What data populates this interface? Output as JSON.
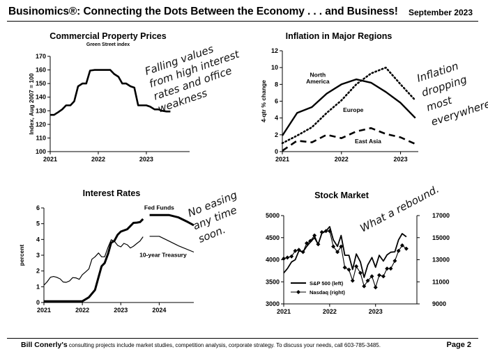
{
  "header": {
    "title": "Businomics®: Connecting the Dots Between the Economy . . . and Business!",
    "date": "September 2023"
  },
  "footer": {
    "author": "Bill Conerly's",
    "text": " consulting projects include market studies, competition analysis, corporate strategy.  To discuss your needs, call 603-785-3485.",
    "page": "Page 2"
  },
  "chart_data": [
    {
      "id": "commercial",
      "type": "line",
      "title": "Commercial Property Prices",
      "subtitle": "Green Street index",
      "ylabel": "Index, Aug 2007 = 100",
      "ylim": [
        100,
        170
      ],
      "yticks": [
        "100",
        "110",
        "120",
        "130",
        "140",
        "150",
        "160",
        "170"
      ],
      "xlim": [
        2021,
        2023.9
      ],
      "xticks": [
        {
          "v": 2021,
          "label": "2021"
        },
        {
          "v": 2022,
          "label": "2022"
        },
        {
          "v": 2023,
          "label": "2023"
        }
      ],
      "series": [
        {
          "values": [
            [
              2021.0,
              127
            ],
            [
              2021.08,
              127
            ],
            [
              2021.17,
              129
            ],
            [
              2021.25,
              131
            ],
            [
              2021.33,
              134
            ],
            [
              2021.42,
              134
            ],
            [
              2021.5,
              137
            ],
            [
              2021.58,
              148
            ],
            [
              2021.67,
              150
            ],
            [
              2021.75,
              150
            ],
            [
              2021.83,
              159.5
            ],
            [
              2021.92,
              160
            ],
            [
              2022.0,
              160
            ],
            [
              2022.08,
              160
            ],
            [
              2022.17,
              160
            ],
            [
              2022.25,
              160
            ],
            [
              2022.33,
              157
            ],
            [
              2022.42,
              155
            ],
            [
              2022.5,
              150
            ],
            [
              2022.58,
              150
            ],
            [
              2022.67,
              148
            ],
            [
              2022.75,
              147
            ],
            [
              2022.83,
              134
            ],
            [
              2022.92,
              134
            ],
            [
              2023.0,
              134
            ],
            [
              2023.08,
              133
            ],
            [
              2023.17,
              131
            ],
            [
              2023.25,
              131
            ],
            [
              2023.33,
              130
            ],
            [
              2023.42,
              129.5
            ],
            [
              2023.5,
              129.5
            ]
          ]
        }
      ],
      "annotation": [
        "Falling values",
        "from high interest",
        "rates and office",
        "weakness"
      ]
    },
    {
      "id": "inflation",
      "type": "line",
      "title": "Inflation in Major Regions",
      "ylabel": "4-qtr % change",
      "ylim": [
        0,
        12
      ],
      "yticks": [
        "0",
        "2",
        "4",
        "6",
        "8",
        "10",
        "12"
      ],
      "xlim": [
        2021,
        2023.3
      ],
      "xticks": [
        {
          "v": 2021,
          "label": "2021"
        },
        {
          "v": 2022,
          "label": "2022"
        },
        {
          "v": 2023,
          "label": "2023"
        }
      ],
      "series": [
        {
          "name": "North America",
          "style": "solid",
          "values": [
            [
              2021.0,
              1.9
            ],
            [
              2021.25,
              4.6
            ],
            [
              2021.5,
              5.3
            ],
            [
              2021.75,
              6.9
            ],
            [
              2022.0,
              8.0
            ],
            [
              2022.25,
              8.6
            ],
            [
              2022.5,
              8.2
            ],
            [
              2022.75,
              7.1
            ],
            [
              2023.0,
              5.8
            ],
            [
              2023.25,
              4.0
            ]
          ]
        },
        {
          "name": "Europe",
          "style": "dotted",
          "values": [
            [
              2021.0,
              1.0
            ],
            [
              2021.25,
              1.9
            ],
            [
              2021.5,
              2.9
            ],
            [
              2021.75,
              4.6
            ],
            [
              2022.0,
              6.1
            ],
            [
              2022.25,
              8.0
            ],
            [
              2022.5,
              9.3
            ],
            [
              2022.75,
              10.0
            ],
            [
              2023.0,
              8.0
            ],
            [
              2023.25,
              6.1
            ]
          ]
        },
        {
          "name": "East Asia",
          "style": "dashed",
          "values": [
            [
              2021.0,
              0.1
            ],
            [
              2021.25,
              1.3
            ],
            [
              2021.5,
              1.1
            ],
            [
              2021.75,
              2.0
            ],
            [
              2022.0,
              1.6
            ],
            [
              2022.25,
              2.4
            ],
            [
              2022.5,
              2.8
            ],
            [
              2022.75,
              2.1
            ],
            [
              2023.0,
              1.7
            ],
            [
              2023.25,
              0.9
            ]
          ]
        }
      ],
      "annotation": [
        "Inflation",
        "dropping",
        "most",
        "everywhere"
      ]
    },
    {
      "id": "rates",
      "type": "line",
      "title": "Interest Rates",
      "ylabel": "percent",
      "ylim": [
        0,
        6
      ],
      "yticks": [
        "0",
        "1",
        "2",
        "3",
        "4",
        "5",
        "6"
      ],
      "xlim": [
        2021,
        2024.9
      ],
      "xticks": [
        {
          "v": 2021,
          "label": "2021"
        },
        {
          "v": 2022,
          "label": "2022"
        },
        {
          "v": 2023,
          "label": "2023"
        },
        {
          "v": 2024,
          "label": "2024"
        }
      ],
      "series": [
        {
          "name": "Fed Funds",
          "style": "thick",
          "values": [
            [
              2021.0,
              0.08
            ],
            [
              2021.5,
              0.08
            ],
            [
              2022.0,
              0.08
            ],
            [
              2022.17,
              0.33
            ],
            [
              2022.33,
              0.8
            ],
            [
              2022.42,
              1.6
            ],
            [
              2022.5,
              2.3
            ],
            [
              2022.58,
              2.5
            ],
            [
              2022.67,
              3.1
            ],
            [
              2022.75,
              3.8
            ],
            [
              2022.83,
              3.9
            ],
            [
              2022.92,
              4.3
            ],
            [
              2023.0,
              4.5
            ],
            [
              2023.17,
              4.65
            ],
            [
              2023.25,
              4.85
            ],
            [
              2023.33,
              5.05
            ],
            [
              2023.42,
              5.07
            ],
            [
              2023.5,
              5.1
            ],
            [
              2023.58,
              5.3
            ]
          ]
        },
        {
          "name": "Fed Funds forecast",
          "style": "thick",
          "values": [
            [
              2023.75,
              5.55
            ],
            [
              2024.0,
              5.55
            ],
            [
              2024.25,
              5.55
            ],
            [
              2024.5,
              5.4
            ],
            [
              2024.75,
              5.1
            ],
            [
              2024.9,
              4.9
            ]
          ]
        },
        {
          "name": "10-year Treasury",
          "style": "thin",
          "values": [
            [
              2021.0,
              1.1
            ],
            [
              2021.08,
              1.3
            ],
            [
              2021.17,
              1.6
            ],
            [
              2021.25,
              1.65
            ],
            [
              2021.33,
              1.6
            ],
            [
              2021.42,
              1.5
            ],
            [
              2021.5,
              1.3
            ],
            [
              2021.58,
              1.28
            ],
            [
              2021.67,
              1.37
            ],
            [
              2021.75,
              1.58
            ],
            [
              2021.83,
              1.56
            ],
            [
              2021.92,
              1.47
            ],
            [
              2022.0,
              1.76
            ],
            [
              2022.08,
              1.93
            ],
            [
              2022.17,
              2.13
            ],
            [
              2022.25,
              2.75
            ],
            [
              2022.33,
              2.9
            ],
            [
              2022.42,
              3.14
            ],
            [
              2022.5,
              2.9
            ],
            [
              2022.58,
              2.9
            ],
            [
              2022.67,
              3.52
            ],
            [
              2022.75,
              3.98
            ],
            [
              2022.83,
              3.89
            ],
            [
              2022.92,
              3.62
            ],
            [
              2023.0,
              3.53
            ],
            [
              2023.08,
              3.75
            ],
            [
              2023.17,
              3.66
            ],
            [
              2023.25,
              3.46
            ],
            [
              2023.33,
              3.57
            ],
            [
              2023.42,
              3.75
            ],
            [
              2023.5,
              3.9
            ],
            [
              2023.58,
              4.17
            ]
          ]
        },
        {
          "name": "10-year Treasury forecast",
          "style": "thin",
          "values": [
            [
              2023.75,
              4.2
            ],
            [
              2024.0,
              4.2
            ],
            [
              2024.25,
              3.9
            ],
            [
              2024.5,
              3.6
            ],
            [
              2024.9,
              3.2
            ]
          ]
        }
      ],
      "annotation": [
        "No easing",
        "any time",
        "soon."
      ]
    },
    {
      "id": "stocks",
      "type": "line",
      "title": "Stock Market",
      "ylim": [
        3000,
        5000
      ],
      "yticks": [
        "3000",
        "3500",
        "4000",
        "4500",
        "5000"
      ],
      "y2lim": [
        9000,
        17000
      ],
      "y2ticks": [
        "9000",
        "11000",
        "13000",
        "15000",
        "17000"
      ],
      "xlim": [
        2021,
        2023.9
      ],
      "xticks": [
        {
          "v": 2021,
          "label": "2021"
        },
        {
          "v": 2022,
          "label": "2022"
        },
        {
          "v": 2023,
          "label": "2023"
        }
      ],
      "legend": [
        "S&P 500 (left)",
        "Nasdaq (right)"
      ],
      "series": [
        {
          "name": "S&P 500 (left)",
          "axis": "left",
          "values": [
            [
              2021.0,
              3700
            ],
            [
              2021.08,
              3800
            ],
            [
              2021.17,
              3950
            ],
            [
              2021.25,
              4000
            ],
            [
              2021.33,
              4200
            ],
            [
              2021.42,
              4180
            ],
            [
              2021.5,
              4300
            ],
            [
              2021.58,
              4400
            ],
            [
              2021.67,
              4500
            ],
            [
              2021.75,
              4350
            ],
            [
              2021.83,
              4600
            ],
            [
              2021.92,
              4650
            ],
            [
              2022.0,
              4750
            ],
            [
              2022.08,
              4450
            ],
            [
              2022.17,
              4300
            ],
            [
              2022.25,
              4550
            ],
            [
              2022.33,
              4100
            ],
            [
              2022.42,
              4100
            ],
            [
              2022.5,
              3780
            ],
            [
              2022.58,
              4130
            ],
            [
              2022.67,
              3950
            ],
            [
              2022.75,
              3600
            ],
            [
              2022.83,
              3880
            ],
            [
              2022.92,
              4050
            ],
            [
              2023.0,
              3830
            ],
            [
              2023.08,
              4100
            ],
            [
              2023.17,
              3970
            ],
            [
              2023.25,
              4110
            ],
            [
              2023.33,
              4170
            ],
            [
              2023.42,
              4180
            ],
            [
              2023.5,
              4450
            ],
            [
              2023.58,
              4590
            ],
            [
              2023.67,
              4520
            ]
          ]
        },
        {
          "name": "Nasdaq (right)",
          "axis": "right",
          "values": [
            [
              2021.0,
              13100
            ],
            [
              2021.08,
              13200
            ],
            [
              2021.17,
              13300
            ],
            [
              2021.25,
              13800
            ],
            [
              2021.33,
              13900
            ],
            [
              2021.42,
              13700
            ],
            [
              2021.5,
              14500
            ],
            [
              2021.58,
              14700
            ],
            [
              2021.67,
              15200
            ],
            [
              2021.75,
              14400
            ],
            [
              2021.83,
              15500
            ],
            [
              2021.92,
              15600
            ],
            [
              2022.0,
              15600
            ],
            [
              2022.08,
              14200
            ],
            [
              2022.17,
              13700
            ],
            [
              2022.25,
              14200
            ],
            [
              2022.33,
              12300
            ],
            [
              2022.42,
              12100
            ],
            [
              2022.5,
              11100
            ],
            [
              2022.58,
              12400
            ],
            [
              2022.67,
              11800
            ],
            [
              2022.75,
              10600
            ],
            [
              2022.83,
              11100
            ],
            [
              2022.92,
              11500
            ],
            [
              2023.0,
              10500
            ],
            [
              2023.08,
              11600
            ],
            [
              2023.17,
              11500
            ],
            [
              2023.25,
              12200
            ],
            [
              2023.33,
              12200
            ],
            [
              2023.42,
              12900
            ],
            [
              2023.5,
              13800
            ],
            [
              2023.58,
              14300
            ],
            [
              2023.67,
              14000
            ]
          ]
        }
      ],
      "annotation": [
        "What a rebound."
      ]
    }
  ]
}
